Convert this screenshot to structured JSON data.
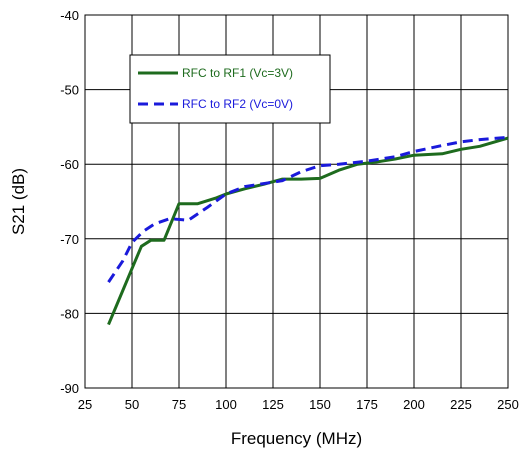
{
  "chart_data": {
    "type": "line",
    "xlabel": "Frequency (MHz)",
    "ylabel": "S21 (dB)",
    "xlim": [
      25,
      250
    ],
    "ylim": [
      -90,
      -40
    ],
    "xticks": [
      25,
      50,
      75,
      100,
      125,
      150,
      175,
      200,
      225,
      250
    ],
    "yticks": [
      -90,
      -80,
      -70,
      -60,
      -50,
      -40
    ],
    "xtick_labels": [
      "25",
      "50",
      "75",
      "100",
      "125",
      "150",
      "175",
      "200",
      "225",
      "250"
    ],
    "ytick_labels": [
      "-90",
      "-80",
      "-70",
      "-60",
      "-50",
      "-40"
    ],
    "grid": true,
    "legend_position": "top-left (inside plot)",
    "series": [
      {
        "name": "RFC to RF1 (Vc=3V)",
        "color": "#1e6b1e",
        "style": "solid",
        "points": [
          [
            37.5,
            -81.5
          ],
          [
            45,
            -77
          ],
          [
            50,
            -74
          ],
          [
            55,
            -71
          ],
          [
            60,
            -70.2
          ],
          [
            67,
            -70.2
          ],
          [
            75,
            -65.3
          ],
          [
            85,
            -65.3
          ],
          [
            95,
            -64.5
          ],
          [
            100,
            -64
          ],
          [
            110,
            -63.3
          ],
          [
            120,
            -62.7
          ],
          [
            130,
            -62
          ],
          [
            140,
            -62
          ],
          [
            150,
            -61.9
          ],
          [
            160,
            -60.8
          ],
          [
            170,
            -60
          ],
          [
            180,
            -59.7
          ],
          [
            190,
            -59.3
          ],
          [
            200,
            -58.8
          ],
          [
            215,
            -58.6
          ],
          [
            225,
            -58
          ],
          [
            235,
            -57.6
          ],
          [
            250,
            -56.5
          ]
        ]
      },
      {
        "name": "RFC to RF2 (Vc=0V)",
        "color": "#1a1adb",
        "style": "dashed",
        "points": [
          [
            37.5,
            -75.8
          ],
          [
            45,
            -73
          ],
          [
            50,
            -70.5
          ],
          [
            56,
            -69
          ],
          [
            62,
            -68
          ],
          [
            70,
            -67.3
          ],
          [
            80,
            -67.5
          ],
          [
            90,
            -65.8
          ],
          [
            100,
            -64
          ],
          [
            110,
            -63
          ],
          [
            120,
            -62.6
          ],
          [
            130,
            -62.2
          ],
          [
            140,
            -61
          ],
          [
            150,
            -60.2
          ],
          [
            160,
            -60
          ],
          [
            175,
            -59.6
          ],
          [
            190,
            -59
          ],
          [
            200,
            -58.3
          ],
          [
            215,
            -57.5
          ],
          [
            225,
            -57
          ],
          [
            235,
            -56.7
          ],
          [
            250,
            -56.4
          ]
        ]
      }
    ]
  }
}
